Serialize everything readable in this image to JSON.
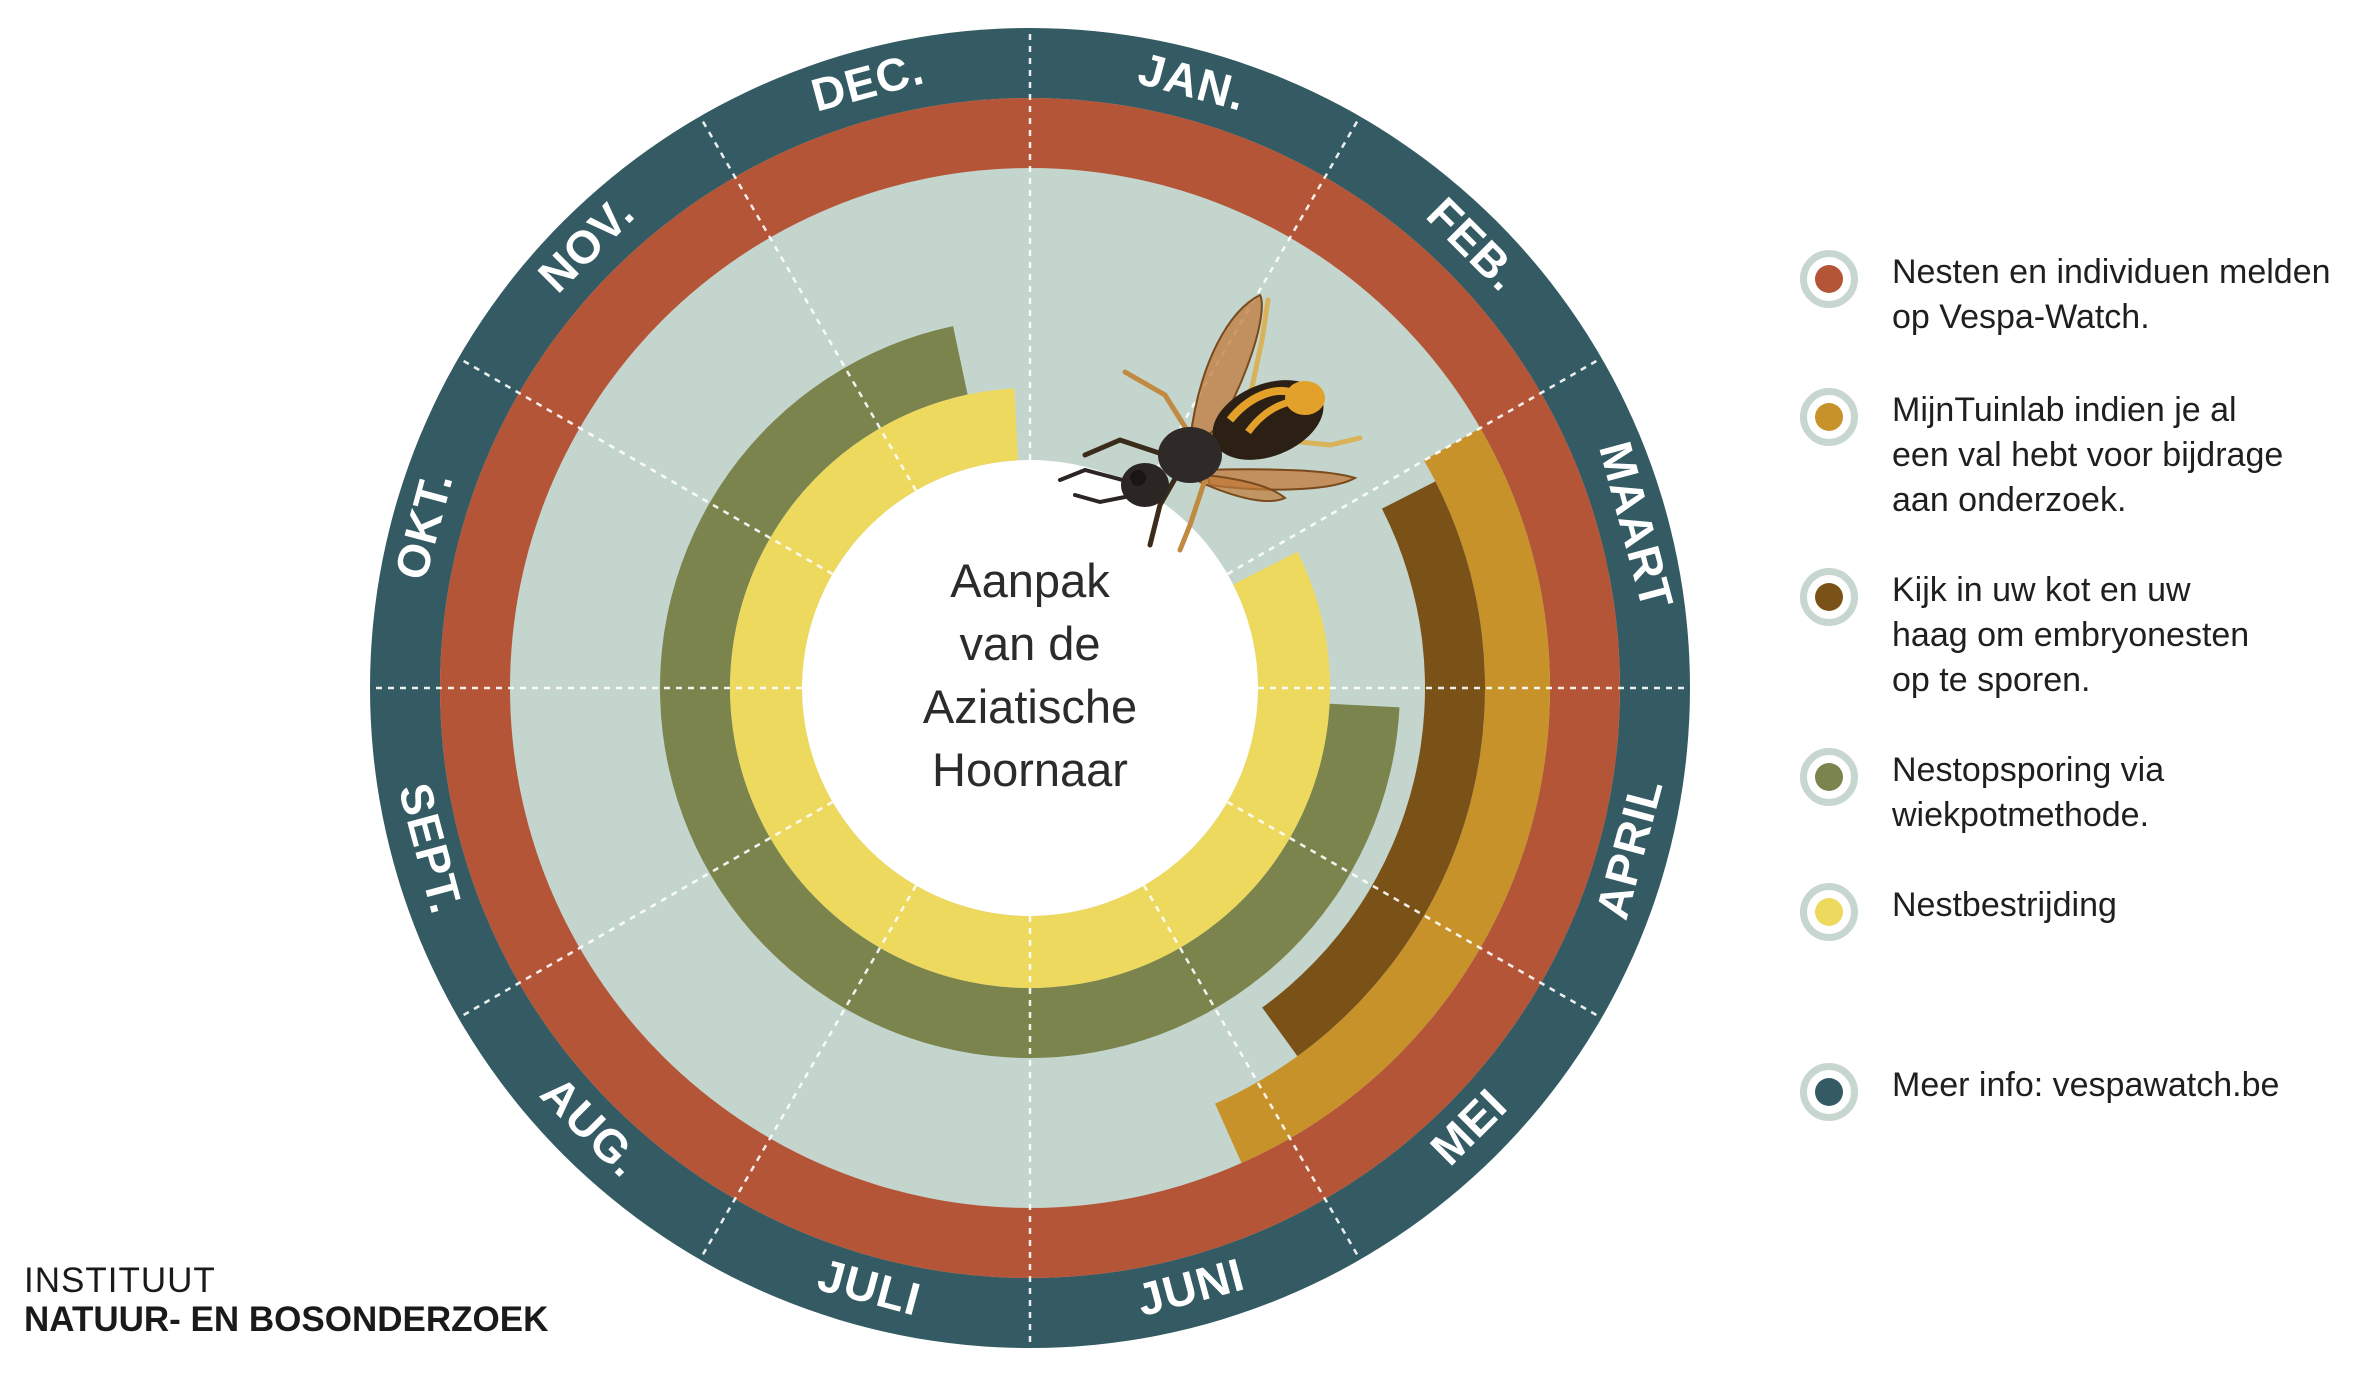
{
  "months": [
    "JAN.",
    "FEB.",
    "MAART",
    "APRIL",
    "MEI",
    "JUNI",
    "JULI",
    "AUG.",
    "SEPT.",
    "OKT.",
    "NOV.",
    "DEC."
  ],
  "center_title": [
    "Aanpak",
    "van de",
    "Aziatische",
    "Hoornaar"
  ],
  "colors": {
    "outer_ring": "#345b63",
    "red": "#b45538",
    "background": "#c3d5cd",
    "ochre": "#c8922b",
    "brown": "#7a5217",
    "olive": "#7b844d",
    "yellow": "#eed95f"
  },
  "activities": [
    {
      "key": "red",
      "color": "#b45538",
      "start_month": 1,
      "end_month": 12
    },
    {
      "key": "ochre",
      "color": "#c8922b",
      "start_month": 3,
      "end_month": 5.2
    },
    {
      "key": "brown",
      "color": "#7a5217",
      "start_month": 3.1,
      "end_month": 4.8
    },
    {
      "key": "olive",
      "color": "#7b844d",
      "start_month": 4.1,
      "end_month": 11.6
    },
    {
      "key": "yellow",
      "color": "#eed95f",
      "start_month": 3.1,
      "end_month": 11.9
    }
  ],
  "legend": [
    {
      "text": "Nesten en individuen melden\nop Vespa-Watch.",
      "color": "#b45538",
      "icon": "red-dot-icon"
    },
    {
      "text": "MijnTuinlab indien je al\neen val hebt voor bijdrage\naan onderzoek.",
      "color": "#c8922b",
      "icon": "ochre-dot-icon"
    },
    {
      "text": "Kijk in uw kot en uw\nhaag om embryonesten\nop te sporen.",
      "color": "#7a5217",
      "icon": "brown-dot-icon"
    },
    {
      "text": "Nestopsporing via\nwiekpotmethode.",
      "color": "#7b844d",
      "icon": "olive-dot-icon"
    },
    {
      "text": "Nestbestrijding",
      "color": "#eed95f",
      "icon": "yellow-dot-icon"
    },
    {
      "text": "Meer info: vespawatch.be",
      "color": "#345b63",
      "icon": "teal-dot-icon"
    }
  ],
  "logo": {
    "line1": "INSTITUUT",
    "line2": "NATUUR- EN BOSONDERZOEK"
  },
  "illustration": "asian-hornet-icon"
}
